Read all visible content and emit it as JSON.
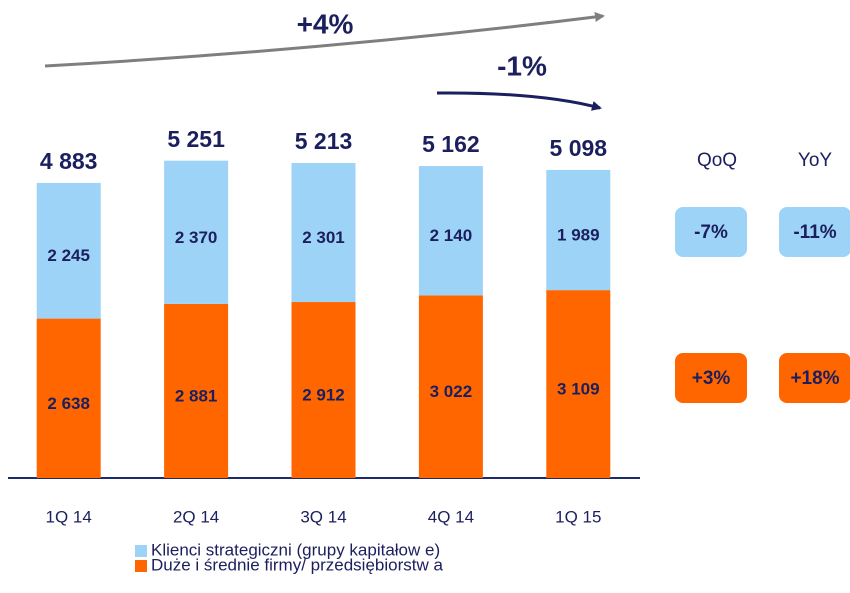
{
  "chart_data": {
    "type": "stacked_bar",
    "categories": [
      "1Q 14",
      "2Q 14",
      "3Q 14",
      "4Q 14",
      "1Q 15"
    ],
    "series": [
      {
        "name": "Duże i średnie firmy/ przedsiębiorstw a",
        "color": "#ff6600",
        "values": [
          2638,
          2881,
          2912,
          3022,
          3109
        ],
        "value_labels": [
          "2 638",
          "2 881",
          "2 912",
          "3 022",
          "3 109"
        ]
      },
      {
        "name": "Klienci strategiczni (grupy kapitałow e)",
        "color": "#9dd3f7",
        "values": [
          2245,
          2370,
          2301,
          2140,
          1989
        ],
        "value_labels": [
          "2 245",
          "2 370",
          "2 301",
          "2 140",
          "1 989"
        ]
      }
    ],
    "totals": [
      4883,
      5251,
      5213,
      5162,
      5098
    ],
    "total_labels": [
      "4 883",
      "5 251",
      "5 213",
      "5 162",
      "5 098"
    ],
    "ylim": [
      0,
      7000
    ],
    "arrow_labels": [
      "+4%",
      "-1%"
    ],
    "change_headers": [
      "QoQ",
      "YoY"
    ],
    "changes": [
      [
        "+3%",
        "+18%"
      ],
      [
        "-7%",
        "-11%"
      ]
    ]
  }
}
